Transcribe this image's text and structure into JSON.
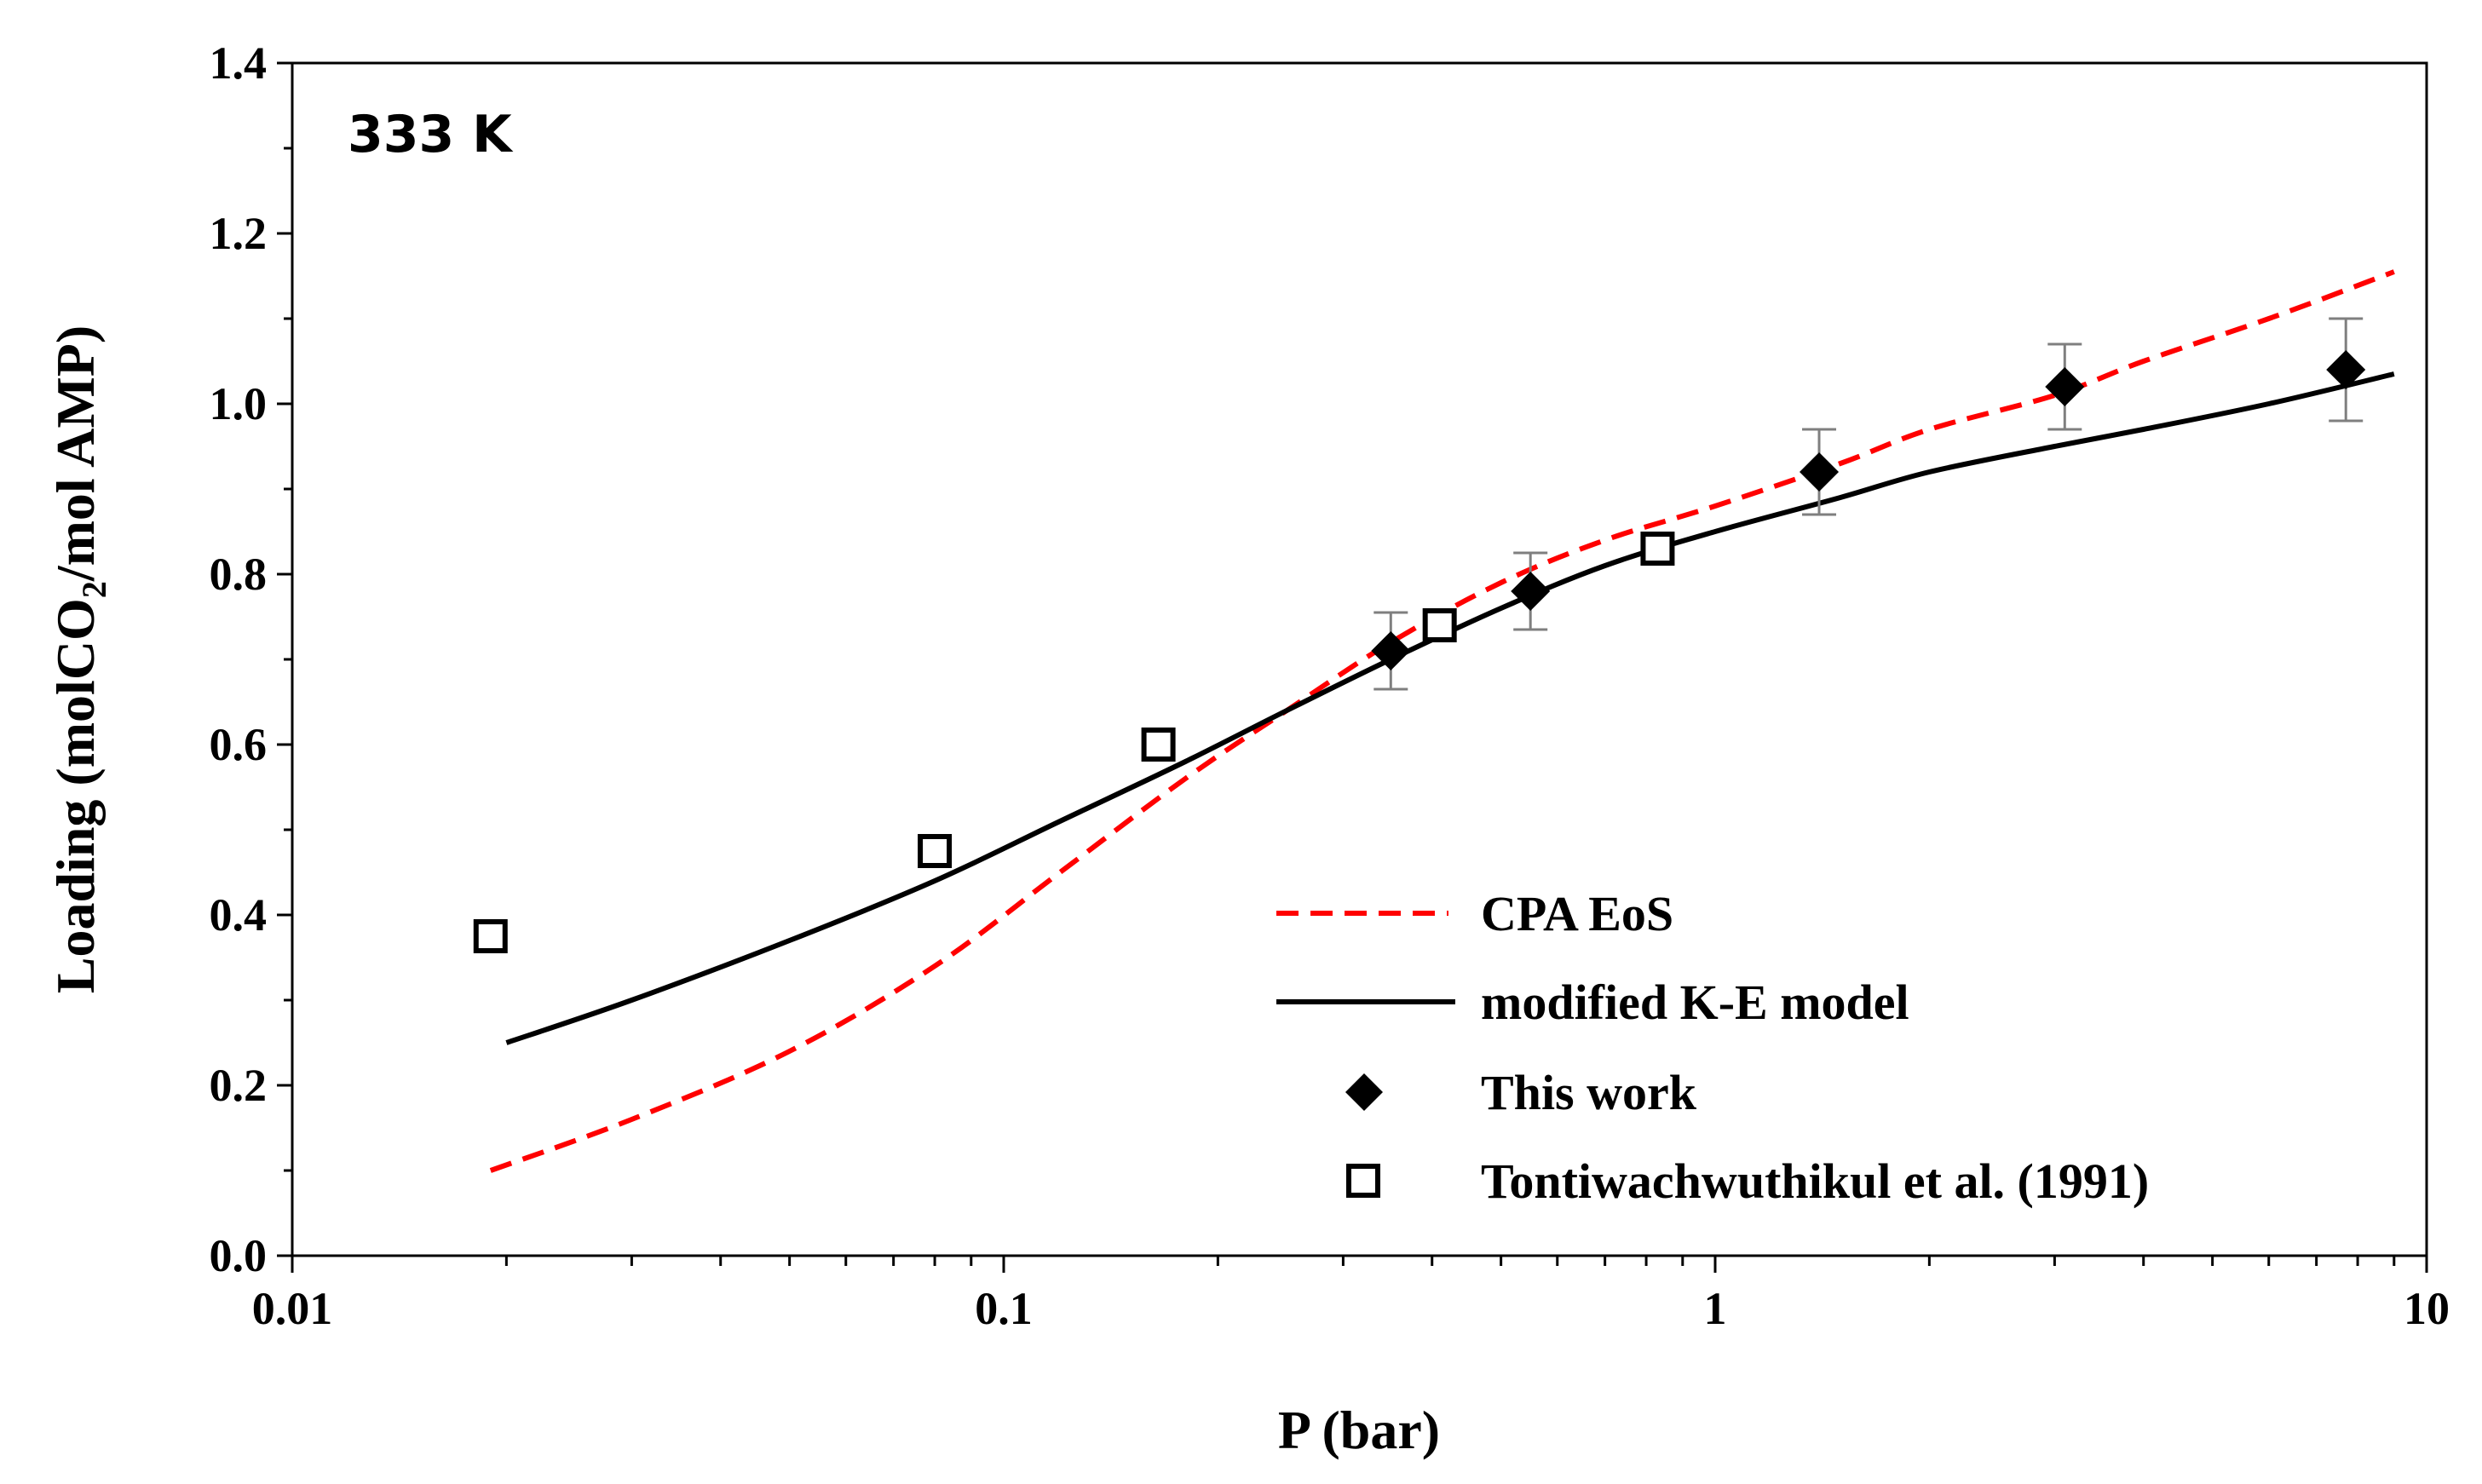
{
  "chart_data": {
    "type": "scatter",
    "title": "",
    "annotation": "333 K",
    "xlabel": "P (bar)",
    "ylabel_parts": {
      "pre": "Loading (molCO",
      "sub": "2",
      "post": "/mol AMP)"
    },
    "xscale": "log",
    "xlim": [
      0.01,
      10
    ],
    "ylim": [
      0.0,
      1.4
    ],
    "xticks": [
      {
        "value": 0.01,
        "label": "0.01"
      },
      {
        "value": 0.1,
        "label": "0.1"
      },
      {
        "value": 1,
        "label": "1"
      },
      {
        "value": 10,
        "label": "10"
      }
    ],
    "yticks": [
      {
        "value": 0.0,
        "label": "0.0"
      },
      {
        "value": 0.2,
        "label": "0.2"
      },
      {
        "value": 0.4,
        "label": "0.4"
      },
      {
        "value": 0.6,
        "label": "0.6"
      },
      {
        "value": 0.8,
        "label": "0.8"
      },
      {
        "value": 1.0,
        "label": "1.0"
      },
      {
        "value": 1.2,
        "label": "1.2"
      },
      {
        "value": 1.4,
        "label": "1.4"
      }
    ],
    "grid": false,
    "legend_position": "bottom-right",
    "series": [
      {
        "name": "CPA EoS",
        "kind": "line",
        "style": "dashed",
        "color": "#ff0000",
        "x": [
          0.019,
          0.03,
          0.05,
          0.08,
          0.12,
          0.18,
          0.25,
          0.35,
          0.5,
          0.7,
          1.0,
          1.5,
          2.0,
          3.0,
          4.0,
          6.0,
          9.0
        ],
        "y": [
          0.1,
          0.16,
          0.24,
          0.34,
          0.45,
          0.56,
          0.64,
          0.72,
          0.79,
          0.84,
          0.88,
          0.93,
          0.97,
          1.01,
          1.05,
          1.1,
          1.155
        ]
      },
      {
        "name": "modified K-E model",
        "kind": "line",
        "style": "solid",
        "color": "#000000",
        "x": [
          0.02,
          0.03,
          0.05,
          0.08,
          0.12,
          0.18,
          0.25,
          0.35,
          0.5,
          0.7,
          1.0,
          1.5,
          2.0,
          3.0,
          4.0,
          6.0,
          9.0
        ],
        "y": [
          0.25,
          0.3,
          0.37,
          0.44,
          0.51,
          0.58,
          0.64,
          0.7,
          0.76,
          0.81,
          0.85,
          0.89,
          0.92,
          0.95,
          0.97,
          1.0,
          1.035
        ]
      },
      {
        "name": "This work",
        "kind": "scatter",
        "marker": "diamond",
        "color": "#000000",
        "x": [
          0.35,
          0.55,
          1.4,
          3.1,
          7.7
        ],
        "y": [
          0.71,
          0.78,
          0.92,
          1.02,
          1.04
        ],
        "yerr": [
          0.045,
          0.045,
          0.05,
          0.05,
          0.06
        ]
      },
      {
        "name": "Tontiwachwuthikul et al. (1991)",
        "kind": "scatter",
        "marker": "open-square",
        "color": "#000000",
        "x": [
          0.019,
          0.08,
          0.165,
          0.41,
          0.83
        ],
        "y": [
          0.375,
          0.475,
          0.6,
          0.74,
          0.83
        ]
      }
    ]
  }
}
